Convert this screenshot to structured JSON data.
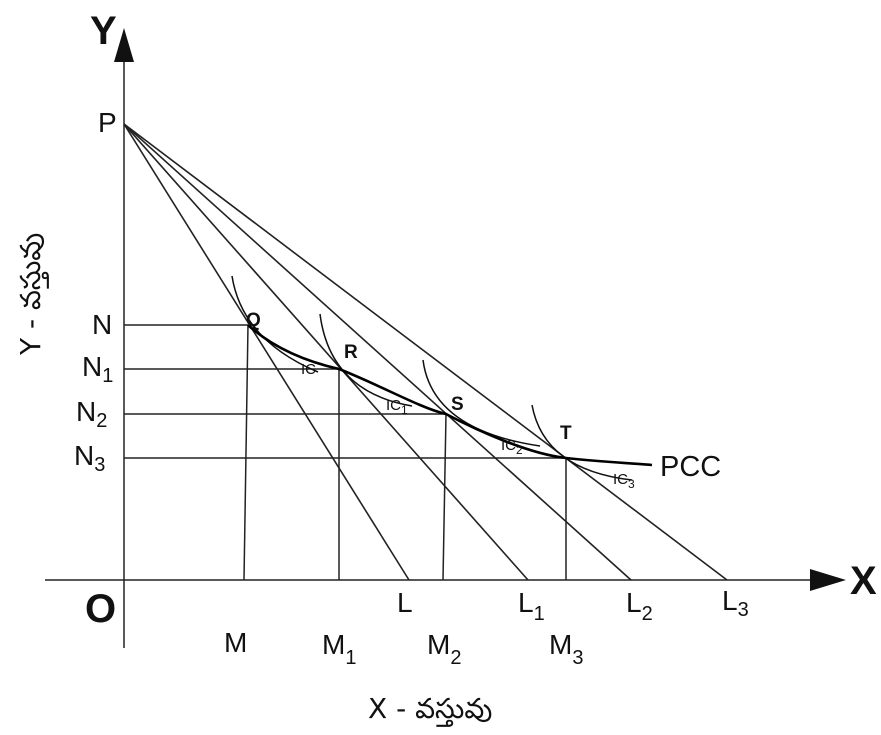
{
  "axes": {
    "y_letter": "Y",
    "x_letter": "X",
    "origin": "O",
    "y_title": "Y - వస్తువు",
    "x_title": "X - వస్తువు"
  },
  "point_p": "P",
  "y_marks": [
    {
      "main": "N",
      "sub": ""
    },
    {
      "main": "N",
      "sub": "1"
    },
    {
      "main": "N",
      "sub": "2"
    },
    {
      "main": "N",
      "sub": "3"
    }
  ],
  "x_budget_marks": [
    {
      "main": "L",
      "sub": ""
    },
    {
      "main": "L",
      "sub": "1"
    },
    {
      "main": "L",
      "sub": "2"
    },
    {
      "main": "L",
      "sub": "3"
    }
  ],
  "x_equilibrium_marks": [
    {
      "main": "M",
      "sub": ""
    },
    {
      "main": "M",
      "sub": "1"
    },
    {
      "main": "M",
      "sub": "2"
    },
    {
      "main": "M",
      "sub": "3"
    }
  ],
  "equilibrium_points": [
    "Q",
    "R",
    "S",
    "T"
  ],
  "indifference_curves": [
    {
      "main": "IC",
      "sub": ""
    },
    {
      "main": "IC",
      "sub": "1"
    },
    {
      "main": "IC",
      "sub": "2"
    },
    {
      "main": "IC",
      "sub": "3"
    }
  ],
  "pcc_label": "PCC"
}
